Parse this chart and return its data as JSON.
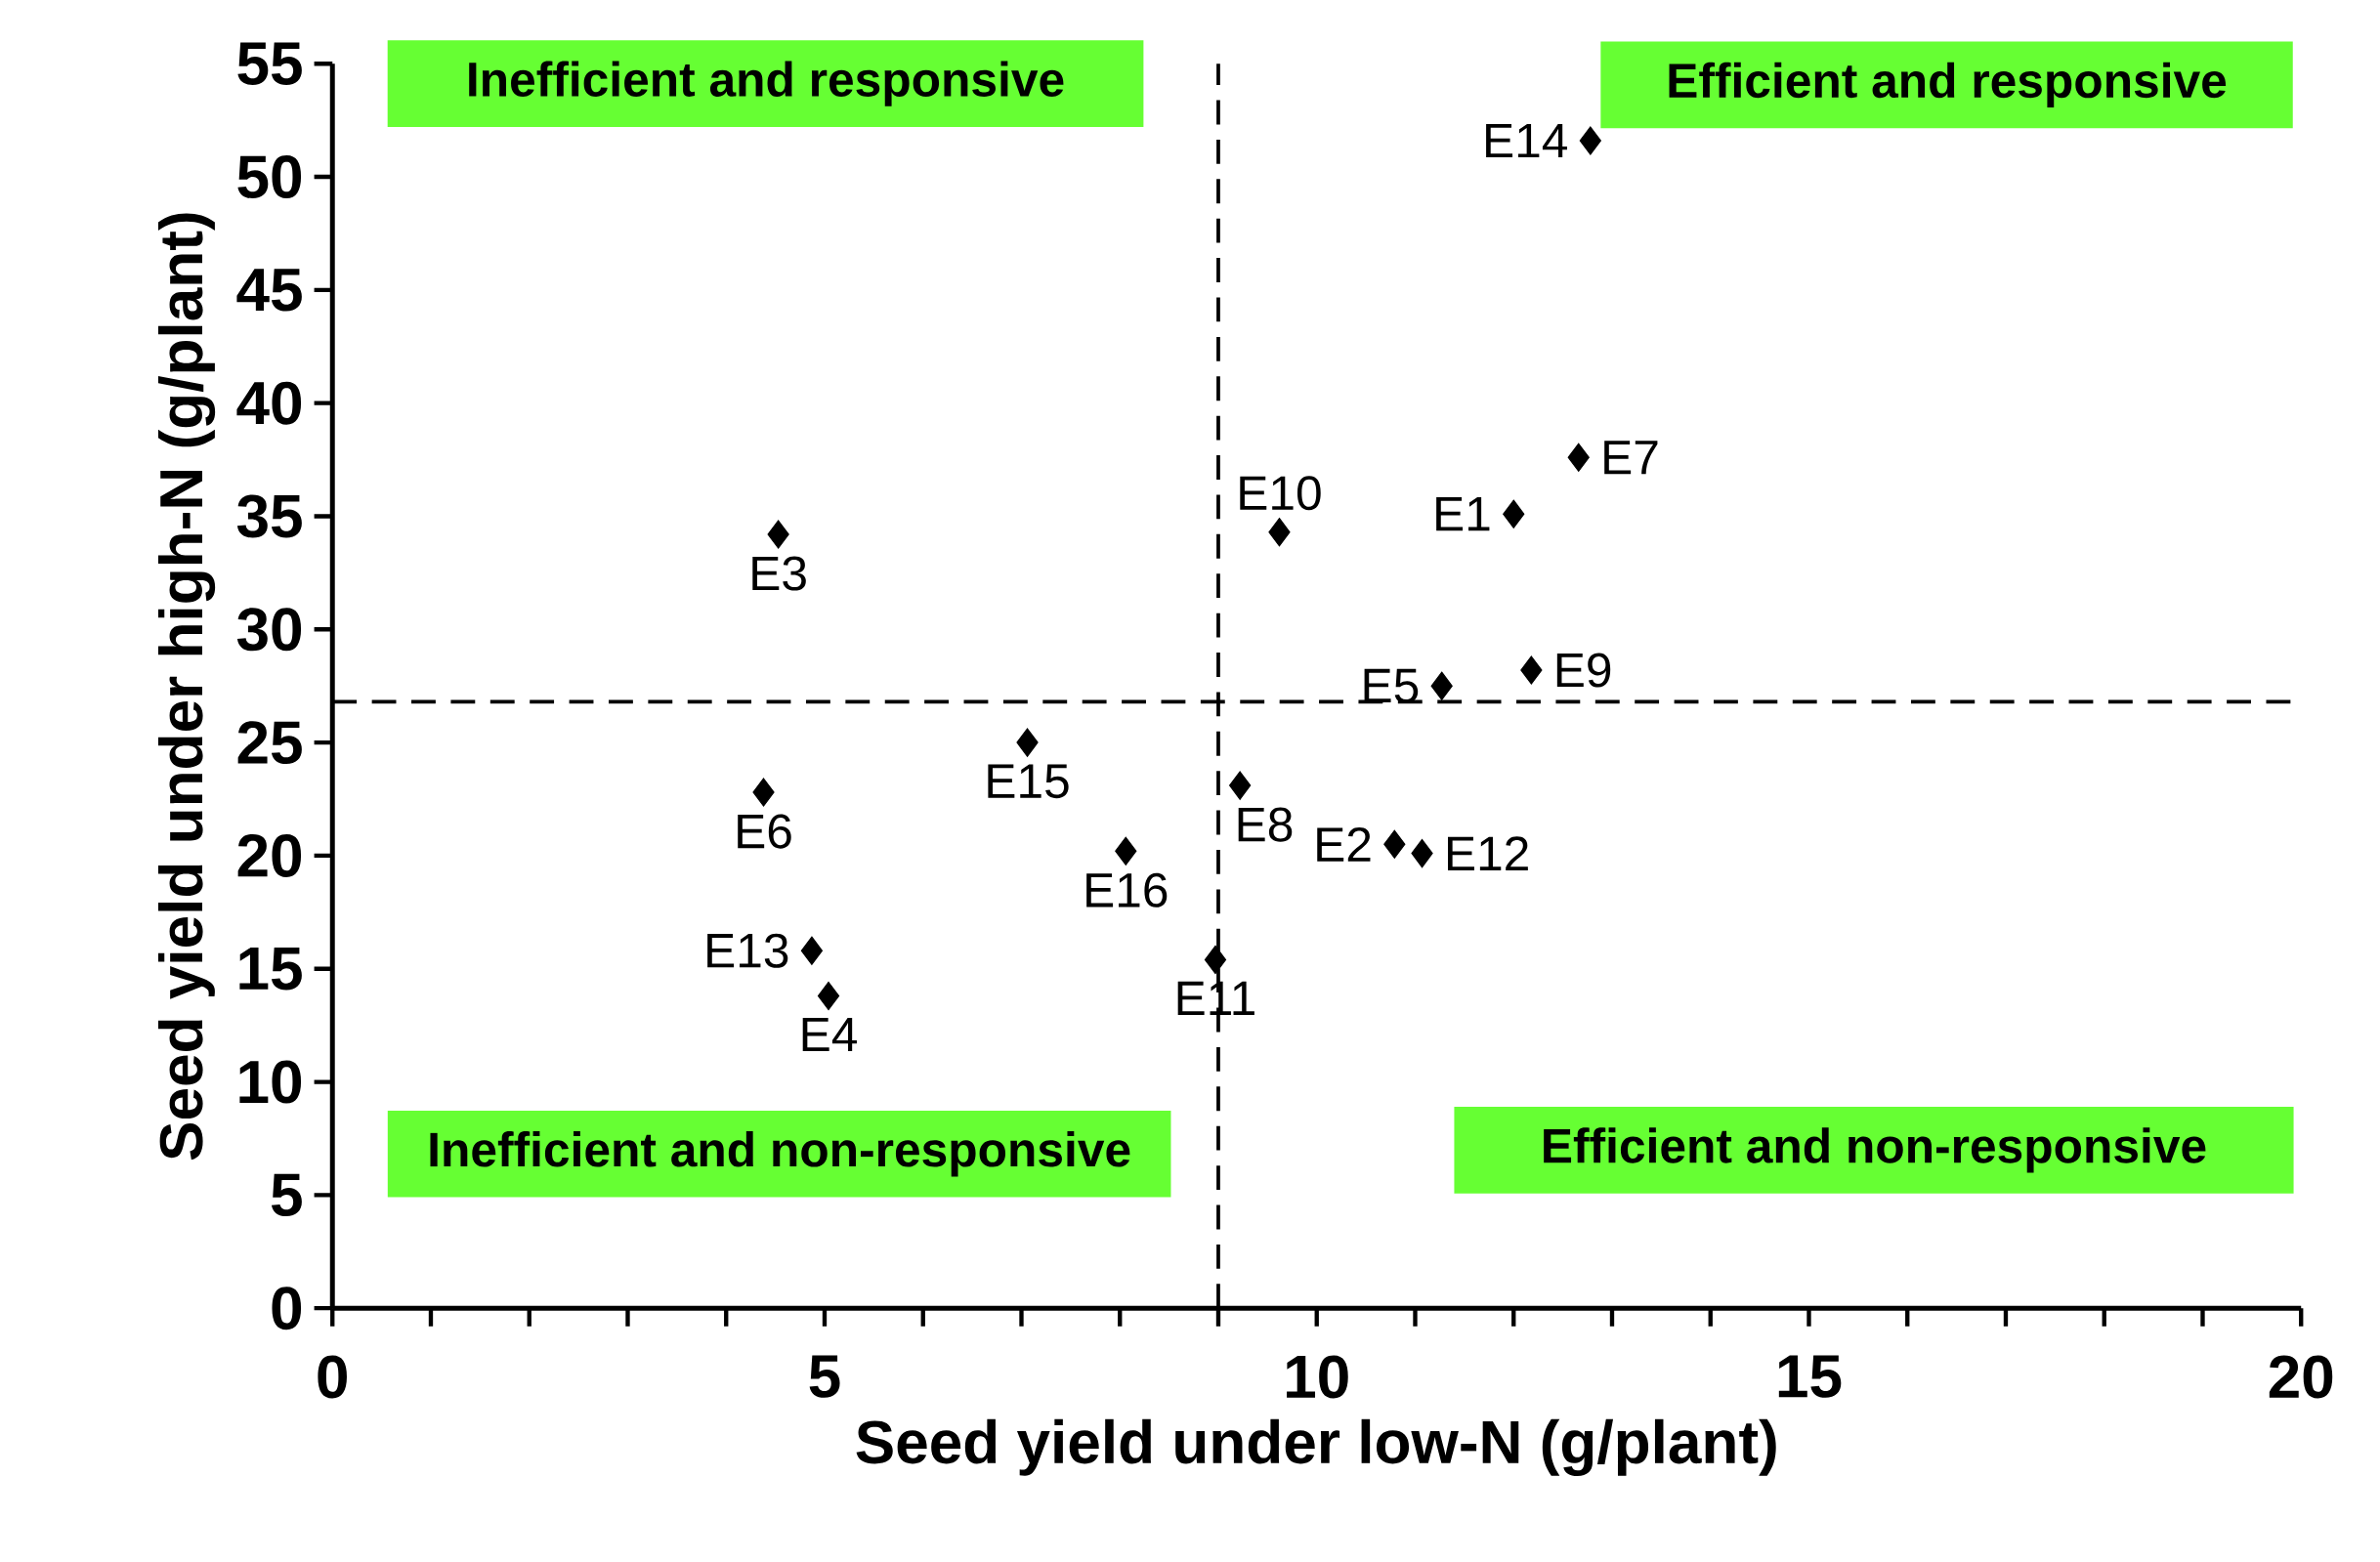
{
  "chart_data": {
    "type": "scatter",
    "xlabel": "Seed yield under low-N (g/plant)",
    "ylabel": "Seed yield under high-N (g/plant)",
    "x": [
      12.0,
      10.79,
      4.53,
      5.04,
      11.27,
      4.38,
      12.66,
      9.22,
      12.18,
      9.62,
      8.97,
      11.07,
      4.87,
      12.78,
      7.06,
      8.06
    ],
    "series": [
      {
        "color": "#000000",
        "values": [
          35.1,
          20.5,
          34.2,
          13.8,
          27.5,
          22.8,
          37.6,
          23.1,
          28.2,
          34.3,
          15.4,
          20.1,
          15.8,
          51.6,
          25.0,
          20.2
        ]
      }
    ],
    "marker": "diamond",
    "grid": false,
    "xlim": [
      0,
      20
    ],
    "ylim": [
      0,
      55
    ],
    "xticks": [
      0,
      5,
      10,
      15,
      20
    ],
    "yticks": [
      0,
      5,
      10,
      15,
      20,
      25,
      30,
      35,
      40,
      45,
      50,
      55
    ],
    "ref_lines": [
      {
        "axis": "x",
        "value": 9.0,
        "color": "#000000",
        "line_style": "dashed"
      },
      {
        "axis": "y",
        "value": 26.8,
        "color": "#000000",
        "line_style": "dashed"
      }
    ],
    "annotations": [
      "Inefficient and responsive",
      "Efficient and responsive",
      "Inefficient and non-responsive",
      "Efficient and non-responsive",
      {
        "text": "E1",
        "x": 12.0,
        "y": 35.1
      },
      {
        "text": "E2",
        "x": 10.79,
        "y": 20.5
      },
      {
        "text": "E3",
        "x": 4.53,
        "y": 34.2
      },
      {
        "text": "E4",
        "x": 5.04,
        "y": 13.8
      },
      {
        "text": "E5",
        "x": 11.27,
        "y": 27.5
      },
      {
        "text": "E6",
        "x": 4.38,
        "y": 22.8
      },
      {
        "text": "E7",
        "x": 12.66,
        "y": 37.6
      },
      {
        "text": "E8",
        "x": 9.22,
        "y": 23.1
      },
      {
        "text": "E9",
        "x": 12.18,
        "y": 28.2
      },
      {
        "text": "E10",
        "x": 9.62,
        "y": 34.3
      },
      {
        "text": "E11",
        "x": 8.97,
        "y": 15.4
      },
      {
        "text": "E12",
        "x": 11.07,
        "y": 20.1
      },
      {
        "text": "E13",
        "x": 4.87,
        "y": 15.8
      },
      {
        "text": "E14",
        "x": 12.78,
        "y": 51.6
      },
      {
        "text": "E15",
        "x": 7.06,
        "y": 25.0
      },
      {
        "text": "E16",
        "x": 8.06,
        "y": 20.2
      }
    ]
  }
}
